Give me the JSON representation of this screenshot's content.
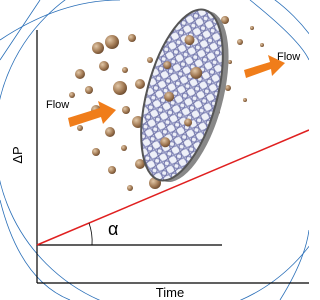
{
  "labels": {
    "flow_in": "Flow",
    "flow_out": "Flow",
    "y_axis": "ΔP",
    "x_axis": "Time",
    "angle": "α"
  }
}
